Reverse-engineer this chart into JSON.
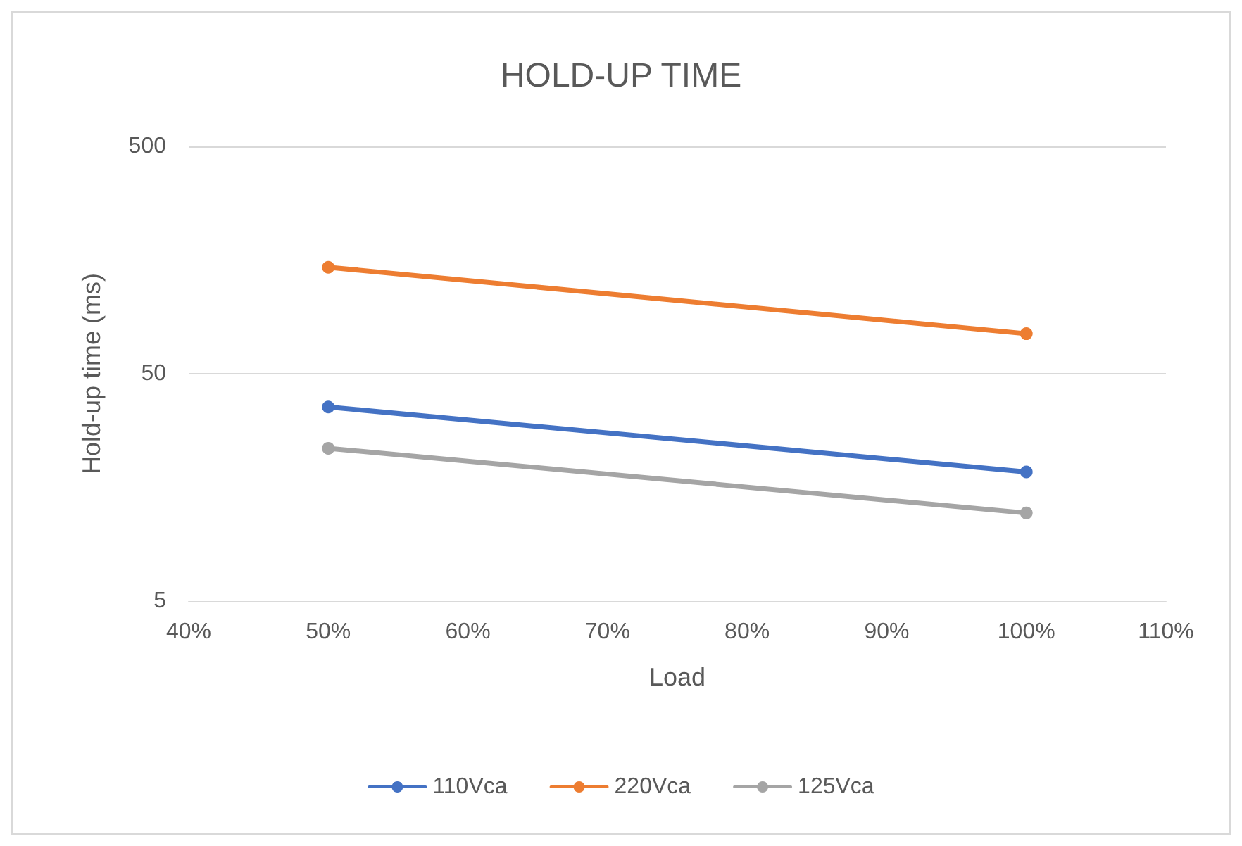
{
  "chart_data": {
    "type": "line",
    "title": "HOLD-UP TIME",
    "xlabel": "Load",
    "ylabel": "Hold-up time (ms)",
    "x": [
      50,
      100
    ],
    "series": [
      {
        "name": "110Vca",
        "color": "#4472c4",
        "values": [
          35.7,
          18.5
        ]
      },
      {
        "name": "220Vca",
        "color": "#ed7d31",
        "values": [
          147,
          75
        ]
      },
      {
        "name": "125Vca",
        "color": "#a5a5a5",
        "values": [
          23.5,
          12.2
        ]
      }
    ],
    "xlim": [
      40,
      110
    ],
    "xticks": [
      {
        "value": 40,
        "label": "40%"
      },
      {
        "value": 50,
        "label": "50%"
      },
      {
        "value": 60,
        "label": "60%"
      },
      {
        "value": 70,
        "label": "70%"
      },
      {
        "value": 80,
        "label": "80%"
      },
      {
        "value": 90,
        "label": "90%"
      },
      {
        "value": 100,
        "label": "100%"
      },
      {
        "value": 110,
        "label": "110%"
      }
    ],
    "ylim": [
      5,
      500
    ],
    "yticks": [
      5,
      50,
      500
    ],
    "log": true,
    "grid": "y",
    "legend": "bottom",
    "marker": "circle",
    "line_style": "solid"
  }
}
